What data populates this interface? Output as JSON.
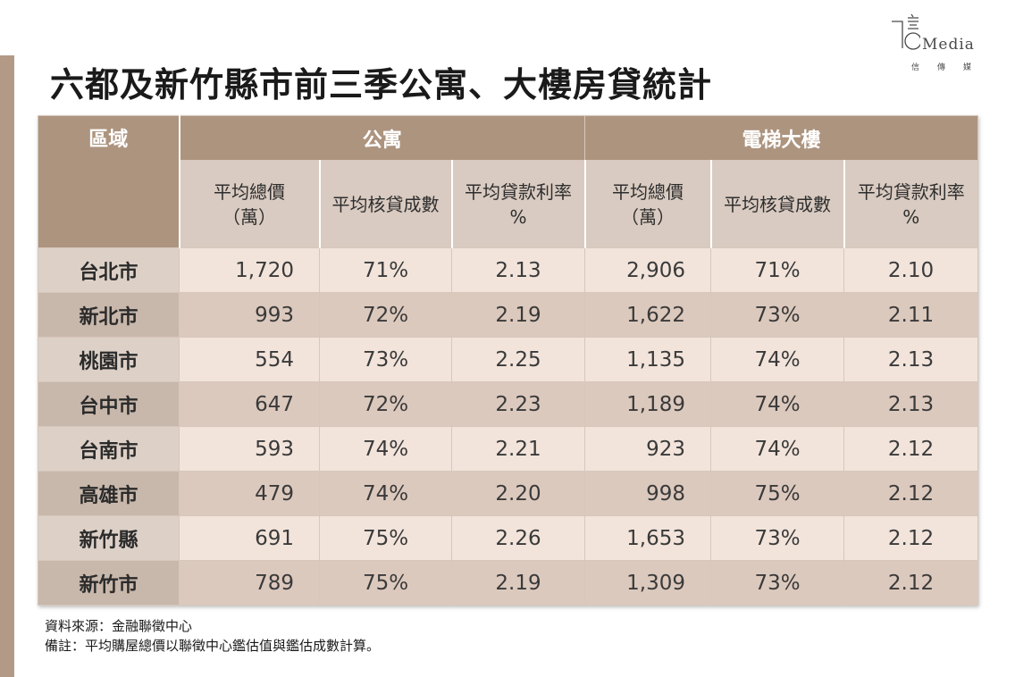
{
  "title": "六都及新竹縣市前三季公寓、大樓房貸統計",
  "logo": {
    "word": "Media",
    "sub": "信傳媒"
  },
  "table": {
    "region_header": "區域",
    "groups": [
      "公寓",
      "電梯大樓"
    ],
    "subheaders": [
      [
        "平均總價",
        "（萬）"
      ],
      [
        "平均核貸成數"
      ],
      [
        "平均貸款利率",
        "%"
      ],
      [
        "平均總價",
        "（萬）"
      ],
      [
        "平均核貸成數"
      ],
      [
        "平均貸款利率",
        "%"
      ]
    ],
    "rows": [
      [
        "台北市",
        "1,720",
        "71%",
        "2.13",
        "2,906",
        "71%",
        "2.10"
      ],
      [
        "新北市",
        "993",
        "72%",
        "2.19",
        "1,622",
        "73%",
        "2.11"
      ],
      [
        "桃園市",
        "554",
        "73%",
        "2.25",
        "1,135",
        "74%",
        "2.13"
      ],
      [
        "台中市",
        "647",
        "72%",
        "2.23",
        "1,189",
        "74%",
        "2.13"
      ],
      [
        "台南市",
        "593",
        "74%",
        "2.21",
        "923",
        "74%",
        "2.12"
      ],
      [
        "高雄市",
        "479",
        "74%",
        "2.20",
        "998",
        "75%",
        "2.12"
      ],
      [
        "新竹縣",
        "691",
        "75%",
        "2.26",
        "1,653",
        "73%",
        "2.12"
      ],
      [
        "新竹市",
        "789",
        "75%",
        "2.19",
        "1,309",
        "73%",
        "2.12"
      ]
    ]
  },
  "source": "資料來源：金融聯徵中心",
  "note": "備註：平均購屋總價以聯徵中心鑑估值與鑑估成數計算。"
}
